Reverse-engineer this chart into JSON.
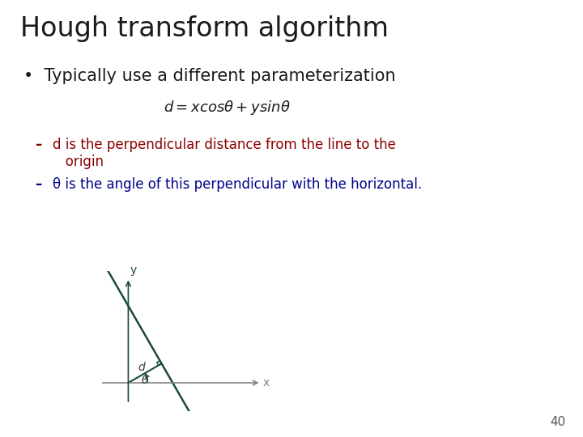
{
  "title": "Hough transform algorithm",
  "bullet": "Typically use a different parameterization",
  "formula": "$d = xcos\\theta + ysin\\theta$",
  "sub1_text": "d is the perpendicular distance from the line to the\n   origin",
  "sub2_text": "θ is the angle of this perpendicular with the horizontal.",
  "title_color": "#1a1a1a",
  "title_fontsize": 24,
  "bullet_color": "#1a1a1a",
  "bullet_fontsize": 15,
  "formula_color": "#1a1a1a",
  "formula_fontsize": 13,
  "sub1_color": "#8B0000",
  "sub2_color": "#00008B",
  "sub_fontsize": 12,
  "page_num": "40",
  "bg_color": "#ffffff",
  "diagram_line_color": "#1a4a3a",
  "axis_color": "#808080",
  "theta_deg": 30,
  "d_val": 1.1
}
